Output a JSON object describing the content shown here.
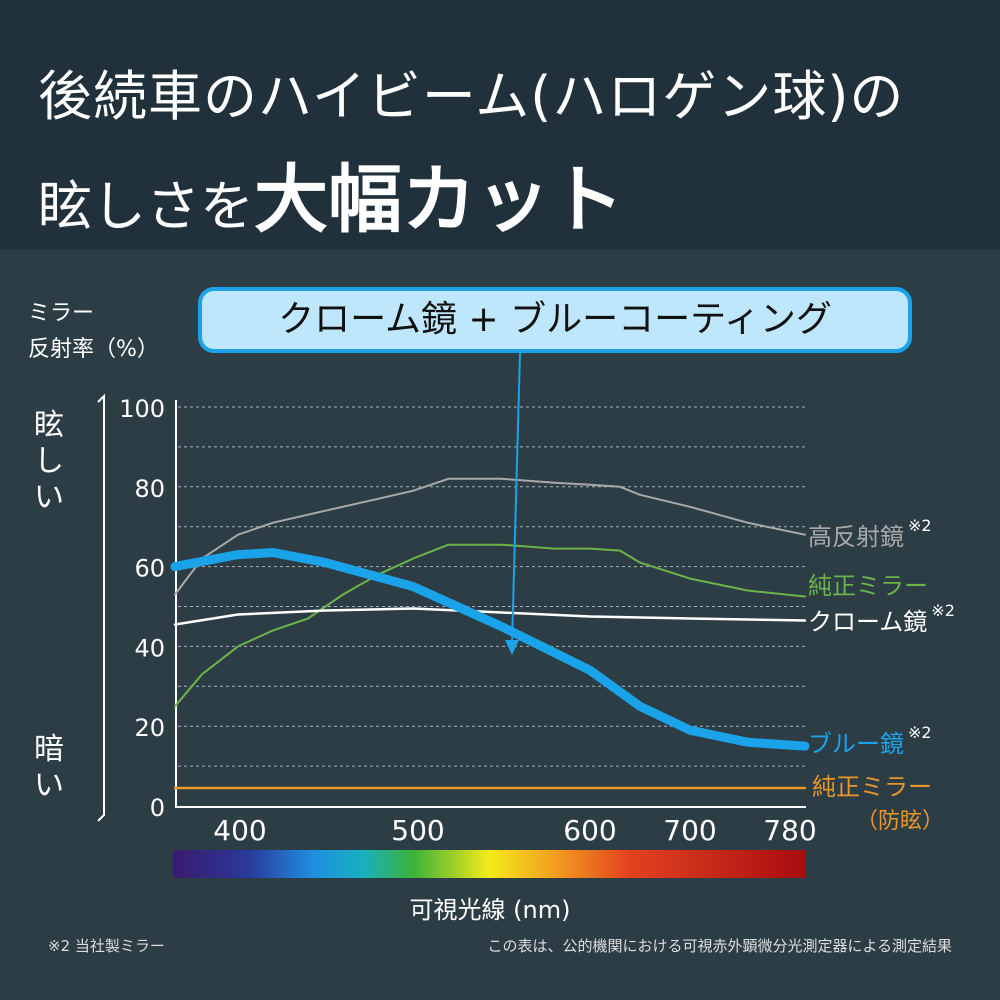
{
  "header": {
    "line1": "後続車のハイビーム(ハロゲン球)の",
    "line2_prefix": "眩しさを",
    "line2_emphasis": "大幅カット"
  },
  "callout": "クローム鏡 + ブルーコーティング",
  "y_axis_title_line1": "ミラー",
  "y_axis_title_line2": "反射率（%）",
  "side_top": "眩しい",
  "side_bottom": "暗い",
  "footnote_left": "※2 当社製ミラー",
  "footnote_right": "この表は、公的機関における可視赤外顕微分光測定器による測定結果",
  "chart_data": {
    "type": "line",
    "xlabel": "可視光線 (nm)",
    "ylabel": "ミラー反射率（%）",
    "xticks": [
      400,
      500,
      600,
      700,
      780
    ],
    "yticks": [
      0,
      20,
      40,
      60,
      80,
      100
    ],
    "ylim": [
      0,
      100
    ],
    "xlim": [
      365,
      780
    ],
    "grid": true,
    "series": [
      {
        "name": "高反射鏡",
        "note": "※2",
        "color": "#a9a9a9",
        "x": [
          365,
          380,
          400,
          420,
          450,
          480,
          500,
          520,
          550,
          580,
          600,
          630,
          650,
          700,
          740,
          780
        ],
        "y": [
          53,
          62,
          68,
          71,
          74,
          77,
          79,
          82,
          82,
          81,
          80.5,
          80,
          78,
          75,
          71,
          68
        ]
      },
      {
        "name": "純正ミラー",
        "note": "",
        "color": "#6cb34a",
        "x": [
          365,
          380,
          400,
          420,
          440,
          460,
          480,
          500,
          520,
          550,
          580,
          600,
          630,
          650,
          700,
          740,
          780
        ],
        "y": [
          25,
          33,
          40,
          44,
          47,
          53,
          58,
          62,
          65.5,
          65.5,
          64.5,
          64.5,
          64,
          61,
          57,
          54,
          52.5
        ]
      },
      {
        "name": "クローム鏡",
        "note": "※2",
        "color": "#ffffff",
        "x": [
          365,
          400,
          450,
          500,
          550,
          600,
          700,
          780
        ],
        "y": [
          45.5,
          48,
          49,
          49.5,
          48.5,
          47.5,
          47,
          46.5
        ]
      },
      {
        "name": "ブルー鏡",
        "note": "※2",
        "color": "#1aa3e8",
        "x": [
          365,
          400,
          420,
          450,
          500,
          550,
          600,
          650,
          700,
          740,
          780
        ],
        "y": [
          60,
          63,
          63.5,
          61,
          55,
          45,
          34,
          25,
          19,
          16,
          15
        ]
      },
      {
        "name": "純正ミラー",
        "note": "（防眩）",
        "color": "#e8962a",
        "x": [
          365,
          780
        ],
        "y": [
          4.5,
          4.5
        ]
      }
    ]
  }
}
